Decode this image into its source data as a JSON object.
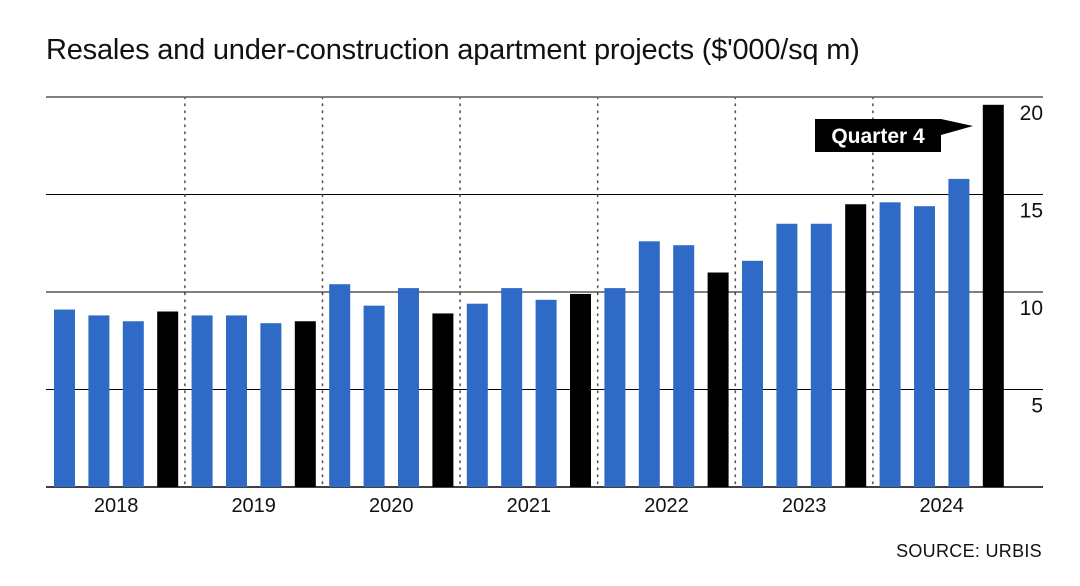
{
  "title": "Resales and under-construction apartment projects ($'000/sq m)",
  "source": "SOURCE: URBIS",
  "colors": {
    "regular": "#2f6bc6",
    "quarter4": "#000000",
    "grid": "#000000"
  },
  "chart_data": {
    "type": "bar",
    "title": "Resales and under-construction apartment projects ($'000/sq m)",
    "xlabel": "",
    "ylabel": "",
    "ylim": [
      0,
      20
    ],
    "yticks": [
      5,
      10,
      15,
      20
    ],
    "grid": true,
    "years": [
      "2018",
      "2019",
      "2020",
      "2021",
      "2022",
      "2023",
      "2024"
    ],
    "quarters_per_year": 4,
    "values": [
      9.1,
      8.8,
      8.5,
      9.0,
      8.8,
      8.8,
      8.4,
      8.5,
      10.4,
      9.3,
      10.2,
      8.9,
      9.4,
      10.2,
      9.6,
      9.9,
      10.2,
      12.6,
      12.4,
      11.0,
      11.6,
      13.5,
      13.5,
      14.5,
      14.6,
      14.4,
      15.8,
      19.6
    ],
    "highlight": "Quarter 4",
    "annotation": "Quarter 4",
    "source": "SOURCE: URBIS"
  }
}
